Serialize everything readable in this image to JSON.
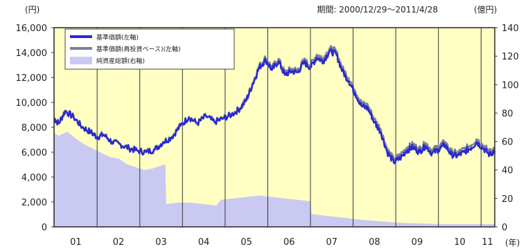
{
  "chart_data": {
    "type": "line",
    "period_text": "期間: 2000/12/29～2011/4/28",
    "left_unit": "(円)",
    "right_unit": "(億円)",
    "x_unit": "(年)",
    "colors": {
      "background": "#ffffc4",
      "nav": "#2a2acf",
      "nav_reinvest": "#7d7d9c",
      "assets": "#c9c9f2",
      "frame": "#333333"
    },
    "x_ticks": [
      "01",
      "02",
      "03",
      "04",
      "05",
      "06",
      "07",
      "08",
      "09",
      "10",
      "11"
    ],
    "y_left": {
      "min": 0,
      "max": 16000,
      "ticks": [
        "0",
        "2,000",
        "4,000",
        "6,000",
        "8,000",
        "10,000",
        "12,000",
        "14,000",
        "16,000"
      ]
    },
    "y_right": {
      "min": 0,
      "max": 140,
      "ticks": [
        "0",
        "20",
        "40",
        "60",
        "80",
        "100",
        "120",
        "140"
      ]
    },
    "legend": [
      {
        "label": "基準価額(左軸)",
        "style": "nav"
      },
      {
        "label": "基準価額(再投資ベース)(左軸)",
        "style": "nav_reinvest"
      },
      {
        "label": "純資産総額(右軸)",
        "style": "assets"
      }
    ],
    "series": [
      {
        "name": "基準価額(左軸)",
        "axis": "left",
        "x": [
          2000.99,
          2001.1,
          2001.25,
          2001.45,
          2001.65,
          2001.85,
          2002.0,
          2002.15,
          2002.35,
          2002.55,
          2002.75,
          2002.95,
          2003.15,
          2003.35,
          2003.55,
          2003.75,
          2003.95,
          2004.15,
          2004.35,
          2004.55,
          2004.75,
          2004.95,
          2005.15,
          2005.35,
          2005.5,
          2005.65,
          2005.8,
          2005.95,
          2006.1,
          2006.25,
          2006.4,
          2006.55,
          2006.7,
          2006.85,
          2007.0,
          2007.15,
          2007.3,
          2007.45,
          2007.6,
          2007.75,
          2007.9,
          2008.05,
          2008.2,
          2008.35,
          2008.5,
          2008.65,
          2008.8,
          2008.95,
          2009.1,
          2009.25,
          2009.4,
          2009.55,
          2009.7,
          2009.85,
          2010.0,
          2010.15,
          2010.3,
          2010.45,
          2010.6,
          2010.75,
          2010.9,
          2011.05,
          2011.2,
          2011.32
        ],
        "values": [
          8700,
          8300,
          9300,
          8800,
          8000,
          7600,
          7200,
          7400,
          6800,
          6600,
          6300,
          6100,
          6000,
          6200,
          6800,
          7200,
          8100,
          8800,
          8300,
          8900,
          8400,
          8700,
          9000,
          9500,
          10200,
          11500,
          12800,
          13400,
          12600,
          13300,
          12200,
          12500,
          12400,
          13200,
          12800,
          13600,
          13300,
          14100,
          13900,
          12500,
          11700,
          10700,
          9700,
          9500,
          8400,
          7600,
          6000,
          5200,
          5500,
          6100,
          6400,
          6000,
          6500,
          5900,
          6200,
          6600,
          5800,
          5700,
          6000,
          6300,
          6800,
          6300,
          5800,
          6100
        ]
      },
      {
        "name": "基準価額(再投資ベース)(左軸)",
        "axis": "left",
        "x": [
          2000.99,
          2001.1,
          2001.25,
          2001.45,
          2001.65,
          2001.85,
          2002.0,
          2002.15,
          2002.35,
          2002.55,
          2002.75,
          2002.95,
          2003.15,
          2003.35,
          2003.55,
          2003.75,
          2003.95,
          2004.15,
          2004.35,
          2004.55,
          2004.75,
          2004.95,
          2005.15,
          2005.35,
          2005.5,
          2005.65,
          2005.8,
          2005.95,
          2006.1,
          2006.25,
          2006.4,
          2006.55,
          2006.7,
          2006.85,
          2007.0,
          2007.15,
          2007.3,
          2007.45,
          2007.6,
          2007.75,
          2007.9,
          2008.05,
          2008.2,
          2008.35,
          2008.5,
          2008.65,
          2008.8,
          2008.95,
          2009.1,
          2009.25,
          2009.4,
          2009.55,
          2009.7,
          2009.85,
          2010.0,
          2010.15,
          2010.3,
          2010.45,
          2010.6,
          2010.75,
          2010.9,
          2011.05,
          2011.2,
          2011.32
        ],
        "values": [
          8750,
          8350,
          9350,
          8850,
          8050,
          7650,
          7250,
          7450,
          6850,
          6650,
          6350,
          6150,
          6050,
          6250,
          6850,
          7250,
          8150,
          8850,
          8350,
          8950,
          8450,
          8750,
          9050,
          9550,
          10300,
          11600,
          12950,
          13600,
          12800,
          13500,
          12400,
          12700,
          12600,
          13400,
          13000,
          13850,
          13550,
          14350,
          14150,
          12750,
          11950,
          10950,
          9950,
          9750,
          8650,
          7850,
          6250,
          5450,
          5750,
          6350,
          6650,
          6250,
          6750,
          6150,
          6450,
          6850,
          6050,
          5950,
          6250,
          6550,
          7050,
          6550,
          6050,
          6350
        ]
      },
      {
        "name": "純資産総額(右軸)",
        "axis": "right",
        "x": [
          2000.99,
          2001.1,
          2001.3,
          2001.5,
          2001.7,
          2001.9,
          2002.1,
          2002.3,
          2002.5,
          2002.7,
          2002.9,
          2003.1,
          2003.3,
          2003.5,
          2003.6,
          2003.62,
          2003.9,
          2004.2,
          2004.5,
          2004.8,
          2004.9,
          2005.2,
          2005.5,
          2005.8,
          2006.1,
          2006.4,
          2006.7,
          2007.0,
          2007.02,
          2007.3,
          2007.6,
          2007.9,
          2008.2,
          2008.6,
          2009.0,
          2009.5,
          2010.0,
          2010.5,
          2011.0,
          2011.32
        ],
        "values": [
          66,
          64,
          67,
          62,
          58,
          55,
          52,
          49,
          48,
          44,
          42,
          40,
          41,
          43,
          44,
          16,
          17,
          17,
          16,
          15,
          19,
          20,
          21,
          22,
          21,
          20,
          19,
          18,
          9,
          8,
          7,
          6,
          5,
          4,
          3,
          2.5,
          2,
          2,
          2,
          2
        ]
      }
    ]
  }
}
